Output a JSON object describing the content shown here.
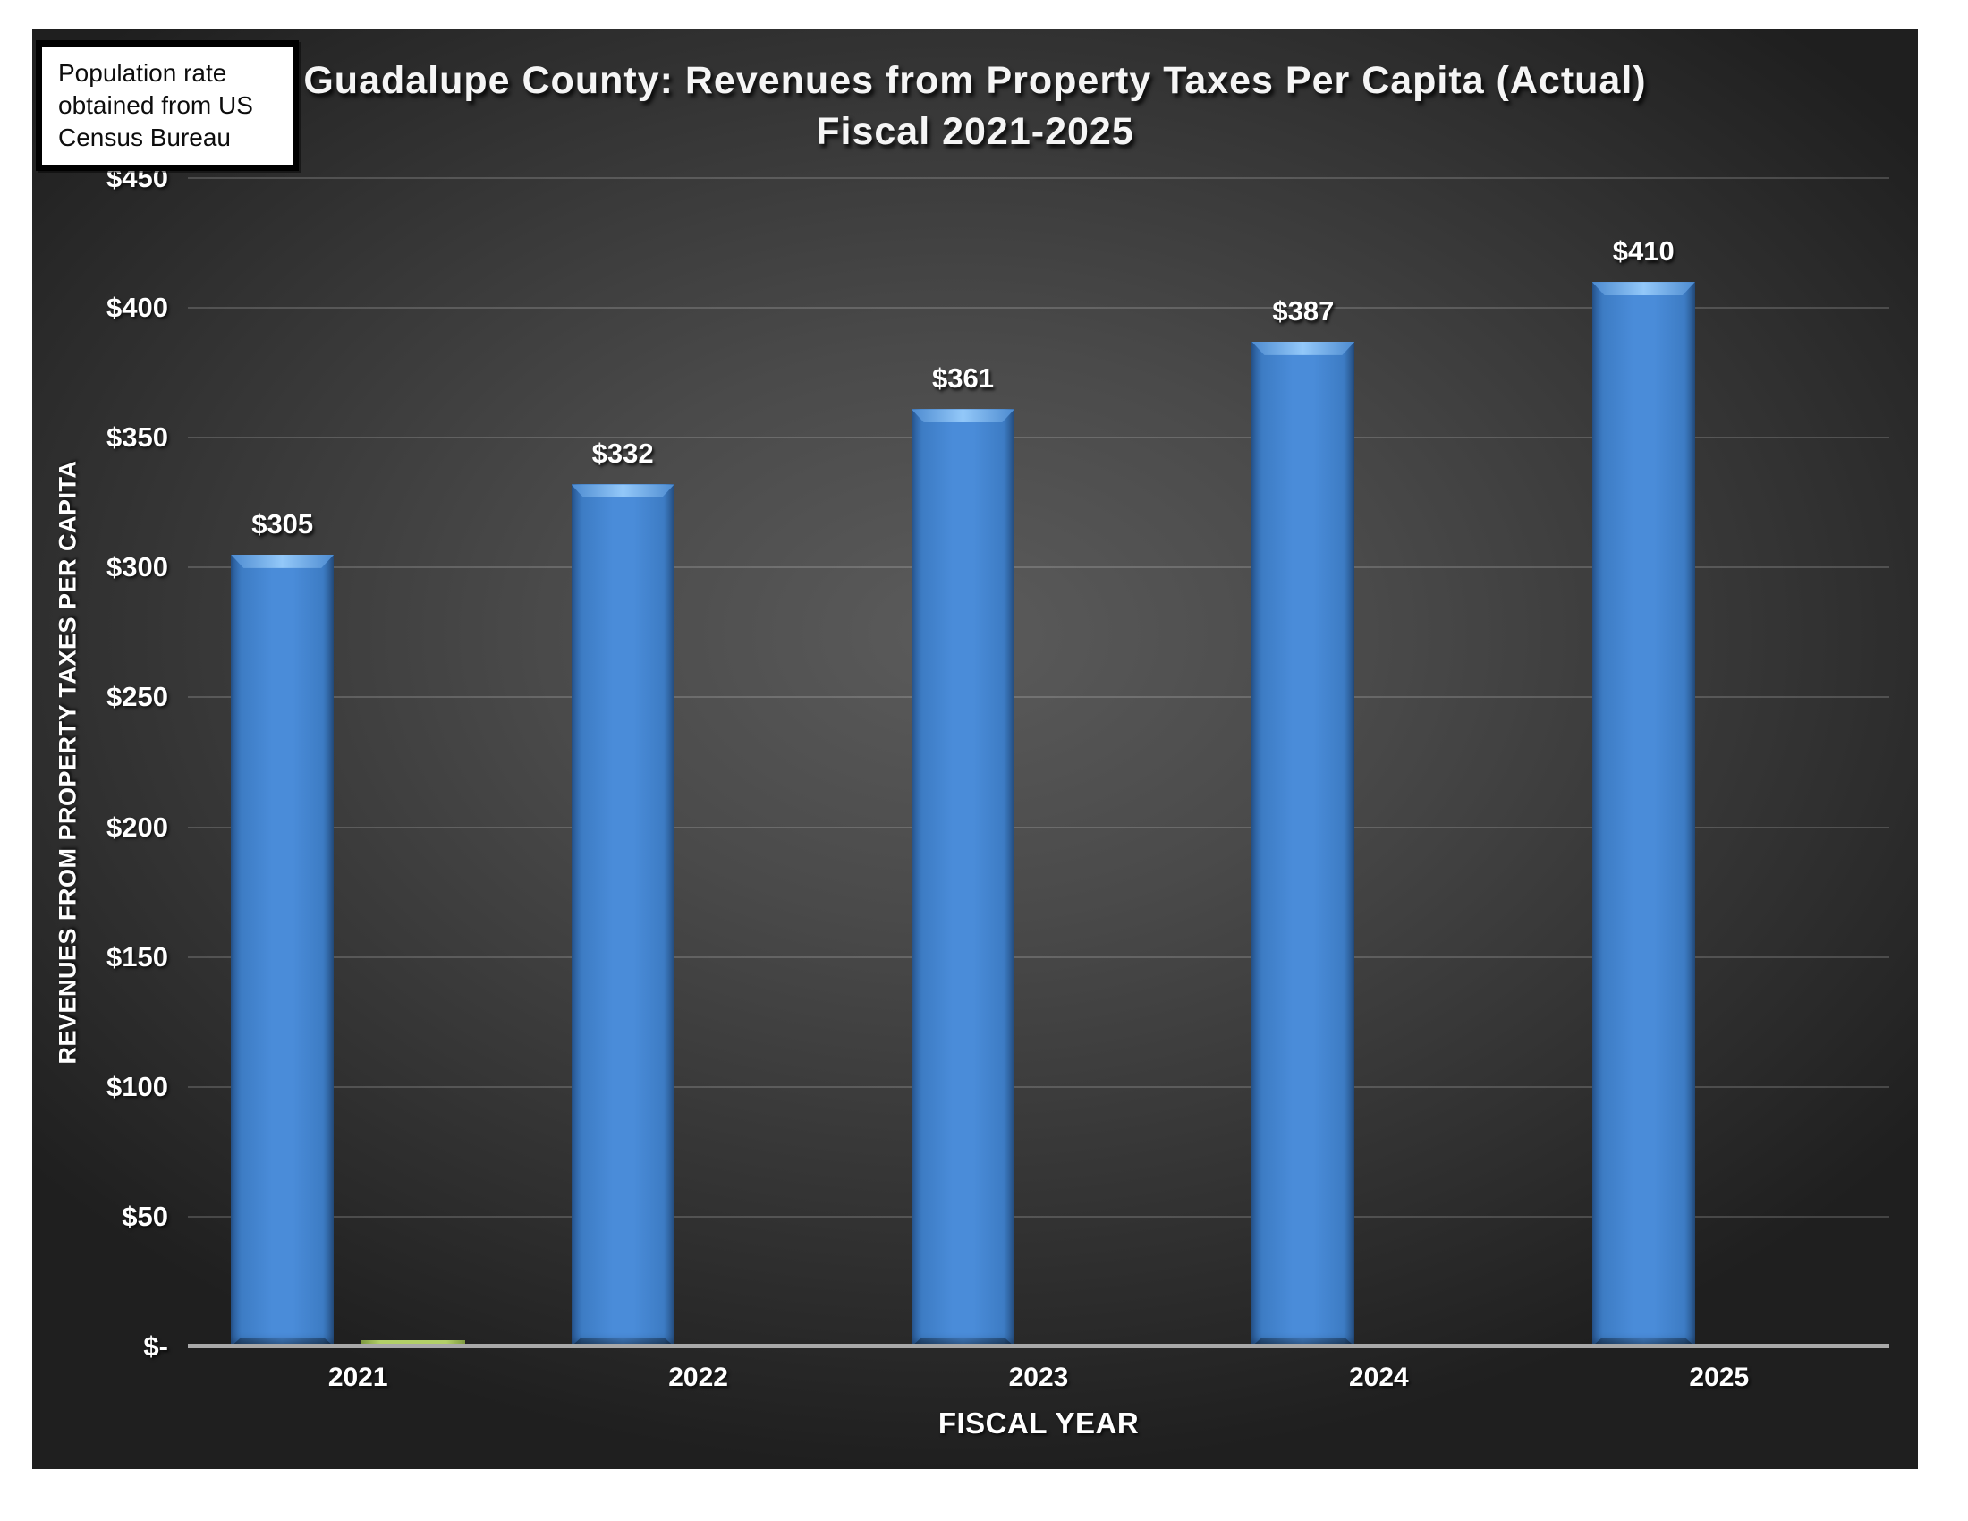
{
  "annotation": {
    "text": "Population rate obtained from US Census Bureau"
  },
  "title": {
    "line1": "Guadalupe County: Revenues from Property Taxes Per Capita (Actual)",
    "line2": "Fiscal 2021-2025"
  },
  "chart_data": {
    "type": "bar",
    "title": "Guadalupe County: Revenues from Property Taxes Per Capita (Actual) Fiscal 2021-2025",
    "categories": [
      "2021",
      "2022",
      "2023",
      "2024",
      "2025"
    ],
    "series": [
      {
        "name": "Revenues from property taxes per capita",
        "color": "#4a8cd9",
        "values": [
          305,
          332,
          361,
          387,
          410
        ],
        "data_labels": [
          "$305",
          "$332",
          "$361",
          "$387",
          "$410"
        ]
      },
      {
        "name": "Unlabeled secondary series (green, visible only for 2021)",
        "color": "#a8c65e",
        "values": [
          1,
          0,
          0,
          0,
          0
        ],
        "data_labels": [
          "",
          "",
          "",
          "",
          ""
        ]
      }
    ],
    "xlabel": "FISCAL YEAR",
    "ylabel": "REVENUES FROM PROPERTY TAXES PER CAPITA",
    "ylim": [
      0,
      450
    ],
    "ytick_step": 50,
    "ytick_labels": [
      "$-",
      "$50",
      "$100",
      "$150",
      "$200",
      "$250",
      "$300",
      "$350",
      "$400",
      "$450"
    ],
    "grid": "horizontal gridlines on, dark theme",
    "legend": "none",
    "background": "dark gray radial gradient",
    "colors": {
      "bar_blue": "#4a8cd9",
      "bar_blue_edge": "#2b5e9e",
      "bar_blue_highlight": "#93c8f9",
      "bar_green": "#a8c65e",
      "gridline": "#5f5f5f",
      "axis_line": "#a9a9a9",
      "text": "#ffffff",
      "canvas_center": "#5b5b5b",
      "canvas_edge": "#1f1f1f"
    }
  }
}
